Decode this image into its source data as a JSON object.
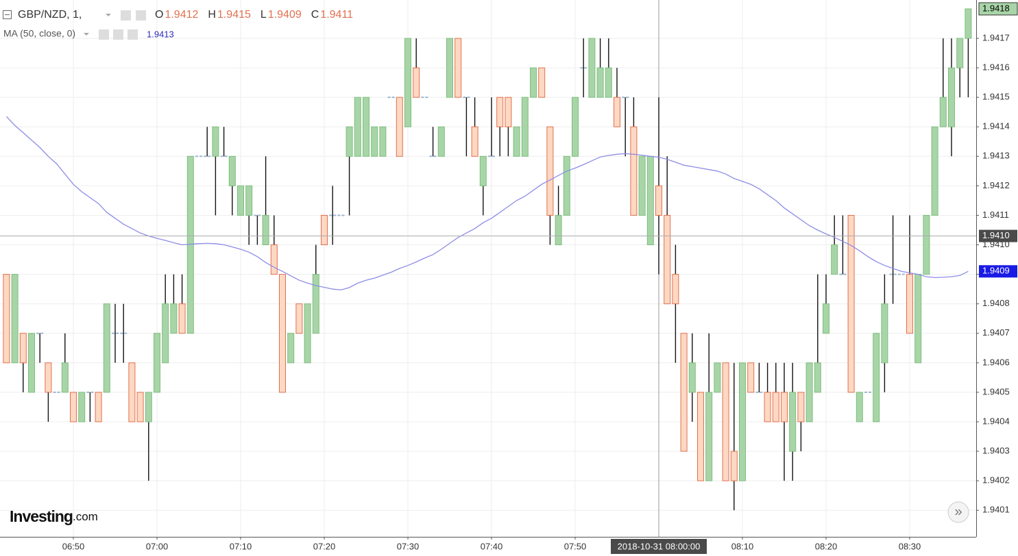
{
  "chart_data": {
    "type": "candlestick",
    "legend": {
      "symbol": "GBP/NZD, 1,",
      "ohlc": [
        {
          "key": "O",
          "value": 1.9412
        },
        {
          "key": "H",
          "value": 1.9415
        },
        {
          "key": "L",
          "value": 1.9409
        },
        {
          "key": "C",
          "value": 1.9411
        }
      ]
    },
    "categories": [
      null,
      null,
      null,
      null,
      null,
      null,
      null,
      null,
      "06:50",
      null,
      null,
      null,
      null,
      null,
      null,
      null,
      null,
      null,
      "07:00",
      null,
      null,
      null,
      null,
      null,
      null,
      null,
      null,
      null,
      "07:10",
      null,
      null,
      null,
      null,
      null,
      null,
      null,
      null,
      null,
      "07:20",
      null,
      null,
      null,
      null,
      null,
      null,
      null,
      null,
      null,
      "07:30",
      null,
      null,
      null,
      null,
      null,
      null,
      null,
      null,
      null,
      "07:40",
      null,
      null,
      null,
      null,
      null,
      null,
      null,
      null,
      null,
      "07:50",
      null,
      null,
      null,
      null,
      null,
      null,
      null,
      null,
      null,
      "2018-10-31 08:00:00",
      null,
      null,
      null,
      null,
      null,
      null,
      null,
      null,
      null,
      "08:10",
      null,
      null,
      null,
      null,
      null,
      null,
      null,
      null,
      null,
      "08:20",
      null,
      null,
      null,
      null,
      null,
      null,
      null,
      null,
      null,
      "08:30",
      null,
      null,
      null,
      null,
      null,
      null,
      null
    ],
    "open": [
      1.9409,
      1.9406,
      1.9407,
      1.9405,
      1.9407,
      1.9406,
      1.9405,
      1.9405,
      1.9405,
      1.9404,
      1.9405,
      1.9405,
      1.9405,
      1.9407,
      1.9407,
      1.9406,
      1.9405,
      1.9404,
      1.9405,
      1.9406,
      1.9407,
      1.9408,
      1.9407,
      1.9413,
      1.9413,
      1.9413,
      1.9413,
      1.9412,
      1.9411,
      1.9411,
      1.9411,
      1.941,
      1.941,
      1.9409,
      1.9406,
      1.9408,
      1.9406,
      1.9407,
      1.9411,
      1.9411,
      1.9411,
      1.9413,
      1.9413,
      1.9413,
      1.9413,
      1.9413,
      1.9415,
      1.9415,
      1.9414,
      1.9416,
      1.9415,
      1.9413,
      1.9413,
      1.9415,
      1.9417,
      1.9415,
      1.9414,
      1.9412,
      1.9413,
      1.9415,
      1.9415,
      1.9413,
      1.9413,
      1.9415,
      1.9416,
      1.9414,
      1.941,
      1.9411,
      1.9413,
      1.9416,
      1.9415,
      1.9415,
      1.9415,
      1.9415,
      1.9415,
      1.9414,
      1.9411,
      1.941,
      1.9412,
      1.9411,
      1.9409,
      1.9407,
      1.9405,
      1.9405,
      1.9402,
      1.9405,
      1.9406,
      1.9403,
      1.9402,
      1.9406,
      1.9405,
      1.9405,
      1.9405,
      1.9405,
      1.9403,
      1.9405,
      1.9404,
      1.9405,
      1.9407,
      1.9409,
      1.9409,
      1.9411,
      1.9404,
      1.9405,
      1.9404,
      1.9406,
      1.9409,
      1.9409,
      1.9409,
      1.9406,
      1.9409,
      1.9411,
      1.9414,
      1.9414,
      1.9416,
      1.9417
    ],
    "high": [
      1.9409,
      1.9409,
      1.9407,
      1.9407,
      1.9407,
      1.9406,
      1.9405,
      1.9407,
      1.9405,
      1.9405,
      1.9405,
      1.9405,
      1.9408,
      1.9408,
      1.9408,
      1.9406,
      1.9405,
      1.9405,
      1.9407,
      1.9409,
      1.9409,
      1.9409,
      1.9413,
      1.9413,
      1.9414,
      1.9414,
      1.9414,
      1.9413,
      1.9412,
      1.9412,
      1.9411,
      1.9413,
      1.9411,
      1.9409,
      1.9407,
      1.9408,
      1.9408,
      1.941,
      1.9411,
      1.9412,
      1.9411,
      1.9414,
      1.9415,
      1.9415,
      1.9414,
      1.9414,
      1.9415,
      1.9415,
      1.9417,
      1.9417,
      1.9415,
      1.9414,
      1.9414,
      1.9417,
      1.9417,
      1.9415,
      1.9415,
      1.9413,
      1.9415,
      1.9415,
      1.9415,
      1.9414,
      1.9415,
      1.9416,
      1.9416,
      1.9414,
      1.9412,
      1.9413,
      1.9415,
      1.9417,
      1.9417,
      1.9417,
      1.9417,
      1.9416,
      1.9415,
      1.9415,
      1.9413,
      1.9413,
      1.9415,
      1.9413,
      1.941,
      1.9407,
      1.9407,
      1.9405,
      1.9407,
      1.9406,
      1.9406,
      1.9406,
      1.9406,
      1.9406,
      1.9406,
      1.9406,
      1.9406,
      1.9406,
      1.9406,
      1.9405,
      1.9406,
      1.9409,
      1.9409,
      1.9411,
      1.9411,
      1.9411,
      1.9405,
      1.9405,
      1.9407,
      1.9409,
      1.9411,
      1.9409,
      1.9411,
      1.9409,
      1.9411,
      1.9414,
      1.9417,
      1.9417,
      1.9417,
      1.9418
    ],
    "low": [
      1.9406,
      1.9406,
      1.9405,
      1.9405,
      1.9406,
      1.9404,
      1.9405,
      1.9405,
      1.9404,
      1.9404,
      1.9404,
      1.9404,
      1.9405,
      1.9406,
      1.9406,
      1.9404,
      1.9404,
      1.9402,
      1.9405,
      1.9406,
      1.9407,
      1.9407,
      1.9407,
      1.9413,
      1.9413,
      1.9411,
      1.9413,
      1.9411,
      1.9411,
      1.941,
      1.941,
      1.941,
      1.9409,
      1.9405,
      1.9406,
      1.9407,
      1.9406,
      1.9407,
      1.941,
      1.941,
      1.9411,
      1.9411,
      1.9413,
      1.9413,
      1.9413,
      1.9413,
      1.9415,
      1.9413,
      1.9414,
      1.9415,
      1.9415,
      1.9413,
      1.9413,
      1.9415,
      1.9415,
      1.9413,
      1.9413,
      1.9411,
      1.9413,
      1.9413,
      1.9413,
      1.9413,
      1.9413,
      1.9415,
      1.9415,
      1.941,
      1.941,
      1.9411,
      1.9413,
      1.9415,
      1.9415,
      1.9415,
      1.9415,
      1.9414,
      1.9413,
      1.9411,
      1.9411,
      1.941,
      1.9409,
      1.9408,
      1.9406,
      1.9403,
      1.9404,
      1.9402,
      1.9402,
      1.9405,
      1.9402,
      1.9401,
      1.9402,
      1.9405,
      1.9405,
      1.9404,
      1.9404,
      1.9402,
      1.9402,
      1.9403,
      1.9404,
      1.9405,
      1.9407,
      1.9409,
      1.9409,
      1.9405,
      1.9404,
      1.9405,
      1.9404,
      1.9405,
      1.9408,
      1.9409,
      1.9407,
      1.9406,
      1.9409,
      1.9411,
      1.9414,
      1.9413,
      1.9415,
      1.9415
    ],
    "close": [
      1.9406,
      1.9409,
      1.9406,
      1.9407,
      1.9407,
      1.9405,
      1.9405,
      1.9406,
      1.9404,
      1.9405,
      1.9405,
      1.9404,
      1.9408,
      1.9407,
      1.9407,
      1.9404,
      1.9404,
      1.9405,
      1.9407,
      1.9408,
      1.9408,
      1.9407,
      1.9413,
      1.9413,
      1.9413,
      1.9414,
      1.9413,
      1.9413,
      1.9412,
      1.9412,
      1.9411,
      1.9411,
      1.9409,
      1.9405,
      1.9407,
      1.9407,
      1.9408,
      1.9409,
      1.941,
      1.9411,
      1.9411,
      1.9414,
      1.9415,
      1.9415,
      1.9414,
      1.9414,
      1.9415,
      1.9413,
      1.9417,
      1.9415,
      1.9415,
      1.9413,
      1.9414,
      1.9417,
      1.9415,
      1.9415,
      1.9413,
      1.9413,
      1.9413,
      1.9414,
      1.9414,
      1.9414,
      1.9415,
      1.9416,
      1.9415,
      1.9411,
      1.9411,
      1.9413,
      1.9415,
      1.9416,
      1.9417,
      1.9416,
      1.9416,
      1.9414,
      1.9415,
      1.9411,
      1.9413,
      1.9413,
      1.9411,
      1.9408,
      1.9408,
      1.9403,
      1.9406,
      1.9402,
      1.9405,
      1.9406,
      1.9402,
      1.9402,
      1.9406,
      1.9405,
      1.9405,
      1.9404,
      1.9404,
      1.9404,
      1.9405,
      1.9404,
      1.9406,
      1.9406,
      1.9408,
      1.941,
      1.9409,
      1.9405,
      1.9405,
      1.9405,
      1.9407,
      1.9408,
      1.9409,
      1.9409,
      1.9407,
      1.9409,
      1.9411,
      1.9414,
      1.9415,
      1.9416,
      1.9417,
      1.9418
    ],
    "up_color": "#a8d5a8",
    "up_border": "#7dbd7d",
    "down_color": "#fdd8c2",
    "down_border": "#e0704f",
    "ma": {
      "name": "MA (50, close, 0)",
      "legend_value": 1.9413,
      "color": "#8c8ce6",
      "last_label": "1.9409",
      "values": [
        1.941435,
        1.941405,
        1.94138,
        1.941355,
        1.94133,
        1.9413,
        1.941275,
        1.94124,
        1.941205,
        1.94118,
        1.94116,
        1.94114,
        1.94111,
        1.94109,
        1.94107,
        1.941055,
        1.94104,
        1.94103,
        1.941022,
        1.941015,
        1.941007,
        1.941,
        1.941002,
        1.941004,
        1.941005,
        1.941004,
        1.941,
        1.940993,
        1.940985,
        1.940975,
        1.94096,
        1.94094,
        1.940924,
        1.94091,
        1.940895,
        1.94088,
        1.94087,
        1.940862,
        1.940856,
        1.94085,
        1.940847,
        1.940855,
        1.94087,
        1.94088,
        1.940887,
        1.940897,
        1.940907,
        1.94092,
        1.94093,
        1.940942,
        1.940955,
        1.940967,
        1.940985,
        1.941005,
        1.941025,
        1.94104,
        1.941055,
        1.941075,
        1.94109,
        1.94111,
        1.94113,
        1.94115,
        1.941165,
        1.941185,
        1.941205,
        1.94122,
        1.941235,
        1.94125,
        1.94126,
        1.941272,
        1.941285,
        1.941298,
        1.941303,
        1.941307,
        1.941309,
        1.941307,
        1.941304,
        1.9413,
        1.941297,
        1.94129,
        1.94128,
        1.94127,
        1.941265,
        1.94126,
        1.941255,
        1.94125,
        1.94124,
        1.941225,
        1.941215,
        1.941205,
        1.94119,
        1.94117,
        1.94115,
        1.941125,
        1.941105,
        1.941085,
        1.941065,
        1.94105,
        1.941037,
        1.941025,
        1.941012,
        1.940998,
        1.94098,
        1.94096,
        1.940943,
        1.94093,
        1.94092,
        1.94091,
        1.940905,
        1.9409,
        1.940892,
        1.940889,
        1.94089,
        1.940892,
        1.940896,
        1.94091
      ]
    },
    "crosshair_y": {
      "value": 1.94103,
      "label": "1.9410"
    },
    "ylim": [
      1.94001,
      1.94183
    ],
    "yticks": [
      1.9401,
      1.9402,
      1.9403,
      1.9404,
      1.9405,
      1.9406,
      1.9407,
      1.9408,
      1.9409,
      {
        "value": 1.941,
        "label": "1.9410"
      },
      1.9411,
      1.9412,
      1.9413,
      1.9414,
      1.9415,
      1.9416,
      1.9417
    ],
    "grid": true
  },
  "logo": {
    "brand": "Investing",
    "suffix": ".com"
  },
  "scroll_button": "»"
}
